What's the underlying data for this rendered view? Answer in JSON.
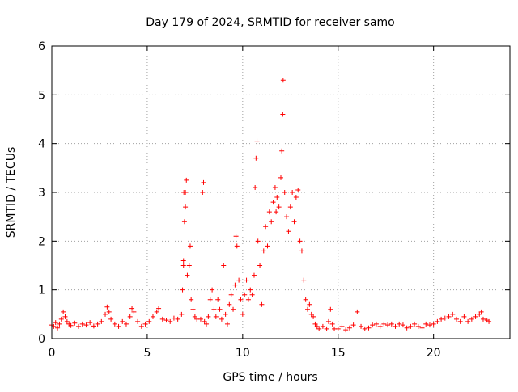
{
  "chart_data": {
    "type": "scatter",
    "title": "Day 179 of 2024, SRMTID for receiver samo",
    "xlabel": "GPS time / hours",
    "ylabel": "SRMTID / TECUs",
    "xlim": [
      0,
      24
    ],
    "ylim": [
      0,
      6
    ],
    "xticks": [
      0,
      5,
      10,
      15,
      20
    ],
    "yticks": [
      0,
      1,
      2,
      3,
      4,
      5,
      6
    ],
    "grid": true,
    "marker": "+",
    "color": "#ff0000",
    "series": [
      {
        "name": "SRMTID",
        "points": [
          [
            0.0,
            0.28
          ],
          [
            0.1,
            0.25
          ],
          [
            0.2,
            0.33
          ],
          [
            0.3,
            0.22
          ],
          [
            0.4,
            0.3
          ],
          [
            0.5,
            0.4
          ],
          [
            0.6,
            0.55
          ],
          [
            0.7,
            0.45
          ],
          [
            0.8,
            0.35
          ],
          [
            0.9,
            0.3
          ],
          [
            1.0,
            0.27
          ],
          [
            1.2,
            0.32
          ],
          [
            1.4,
            0.25
          ],
          [
            1.6,
            0.3
          ],
          [
            1.8,
            0.28
          ],
          [
            2.0,
            0.33
          ],
          [
            2.2,
            0.26
          ],
          [
            2.4,
            0.3
          ],
          [
            2.6,
            0.35
          ],
          [
            2.8,
            0.5
          ],
          [
            2.9,
            0.65
          ],
          [
            3.0,
            0.55
          ],
          [
            3.1,
            0.4
          ],
          [
            3.3,
            0.3
          ],
          [
            3.5,
            0.25
          ],
          [
            3.7,
            0.35
          ],
          [
            3.9,
            0.3
          ],
          [
            4.1,
            0.45
          ],
          [
            4.2,
            0.62
          ],
          [
            4.3,
            0.55
          ],
          [
            4.5,
            0.35
          ],
          [
            4.7,
            0.25
          ],
          [
            4.9,
            0.3
          ],
          [
            5.1,
            0.35
          ],
          [
            5.3,
            0.45
          ],
          [
            5.5,
            0.55
          ],
          [
            5.6,
            0.62
          ],
          [
            5.8,
            0.4
          ],
          [
            6.0,
            0.38
          ],
          [
            6.2,
            0.35
          ],
          [
            6.4,
            0.42
          ],
          [
            6.6,
            0.4
          ],
          [
            6.8,
            0.5
          ],
          [
            6.85,
            1.0
          ],
          [
            6.9,
            1.5
          ],
          [
            6.95,
            2.4
          ],
          [
            7.0,
            3.0
          ],
          [
            7.05,
            3.25
          ],
          [
            7.0,
            2.7
          ],
          [
            6.92,
            3.0
          ],
          [
            6.9,
            1.6
          ],
          [
            7.1,
            1.3
          ],
          [
            7.2,
            1.5
          ],
          [
            7.25,
            1.9
          ],
          [
            7.3,
            0.8
          ],
          [
            7.4,
            0.6
          ],
          [
            7.5,
            0.45
          ],
          [
            7.6,
            0.4
          ],
          [
            7.8,
            0.4
          ],
          [
            7.9,
            3.0
          ],
          [
            7.95,
            3.2
          ],
          [
            8.0,
            0.35
          ],
          [
            8.1,
            0.3
          ],
          [
            8.2,
            0.45
          ],
          [
            8.3,
            0.8
          ],
          [
            8.4,
            1.0
          ],
          [
            8.5,
            0.6
          ],
          [
            8.6,
            0.45
          ],
          [
            8.7,
            0.8
          ],
          [
            8.8,
            0.6
          ],
          [
            8.9,
            0.4
          ],
          [
            9.0,
            1.5
          ],
          [
            9.1,
            0.5
          ],
          [
            9.2,
            0.3
          ],
          [
            9.3,
            0.7
          ],
          [
            9.4,
            0.9
          ],
          [
            9.5,
            0.6
          ],
          [
            9.6,
            1.1
          ],
          [
            9.65,
            2.1
          ],
          [
            9.7,
            1.9
          ],
          [
            9.8,
            1.2
          ],
          [
            9.9,
            0.8
          ],
          [
            10.0,
            0.5
          ],
          [
            10.1,
            0.9
          ],
          [
            10.2,
            1.2
          ],
          [
            10.3,
            0.8
          ],
          [
            10.4,
            1.0
          ],
          [
            10.5,
            0.9
          ],
          [
            10.6,
            1.3
          ],
          [
            10.65,
            3.1
          ],
          [
            10.7,
            3.7
          ],
          [
            10.75,
            4.05
          ],
          [
            10.8,
            2.0
          ],
          [
            10.9,
            1.5
          ],
          [
            11.0,
            0.7
          ],
          [
            11.1,
            1.8
          ],
          [
            11.2,
            2.3
          ],
          [
            11.3,
            1.9
          ],
          [
            11.4,
            2.6
          ],
          [
            11.5,
            2.4
          ],
          [
            11.6,
            2.8
          ],
          [
            11.7,
            3.1
          ],
          [
            11.75,
            2.6
          ],
          [
            11.8,
            2.9
          ],
          [
            11.9,
            2.7
          ],
          [
            12.0,
            3.3
          ],
          [
            12.05,
            3.85
          ],
          [
            12.1,
            4.6
          ],
          [
            12.12,
            5.3
          ],
          [
            12.2,
            3.0
          ],
          [
            12.3,
            2.5
          ],
          [
            12.4,
            2.2
          ],
          [
            12.5,
            2.7
          ],
          [
            12.6,
            3.0
          ],
          [
            12.7,
            2.4
          ],
          [
            12.8,
            2.9
          ],
          [
            12.9,
            3.05
          ],
          [
            13.0,
            2.0
          ],
          [
            13.1,
            1.8
          ],
          [
            13.2,
            1.2
          ],
          [
            13.3,
            0.8
          ],
          [
            13.4,
            0.6
          ],
          [
            13.5,
            0.7
          ],
          [
            13.6,
            0.5
          ],
          [
            13.7,
            0.45
          ],
          [
            13.8,
            0.3
          ],
          [
            13.9,
            0.25
          ],
          [
            14.0,
            0.2
          ],
          [
            14.2,
            0.25
          ],
          [
            14.4,
            0.2
          ],
          [
            14.5,
            0.35
          ],
          [
            14.6,
            0.6
          ],
          [
            14.7,
            0.3
          ],
          [
            14.8,
            0.2
          ],
          [
            15.0,
            0.2
          ],
          [
            15.2,
            0.25
          ],
          [
            15.4,
            0.18
          ],
          [
            15.6,
            0.22
          ],
          [
            15.8,
            0.28
          ],
          [
            16.0,
            0.55
          ],
          [
            16.2,
            0.25
          ],
          [
            16.4,
            0.2
          ],
          [
            16.6,
            0.22
          ],
          [
            16.8,
            0.28
          ],
          [
            17.0,
            0.3
          ],
          [
            17.2,
            0.25
          ],
          [
            17.4,
            0.3
          ],
          [
            17.6,
            0.28
          ],
          [
            17.8,
            0.3
          ],
          [
            18.0,
            0.25
          ],
          [
            18.2,
            0.3
          ],
          [
            18.4,
            0.28
          ],
          [
            18.6,
            0.22
          ],
          [
            18.8,
            0.25
          ],
          [
            19.0,
            0.3
          ],
          [
            19.2,
            0.25
          ],
          [
            19.4,
            0.22
          ],
          [
            19.6,
            0.3
          ],
          [
            19.8,
            0.28
          ],
          [
            20.0,
            0.3
          ],
          [
            20.2,
            0.35
          ],
          [
            20.4,
            0.4
          ],
          [
            20.6,
            0.42
          ],
          [
            20.8,
            0.45
          ],
          [
            21.0,
            0.5
          ],
          [
            21.2,
            0.4
          ],
          [
            21.4,
            0.35
          ],
          [
            21.6,
            0.45
          ],
          [
            21.8,
            0.35
          ],
          [
            22.0,
            0.4
          ],
          [
            22.2,
            0.45
          ],
          [
            22.4,
            0.5
          ],
          [
            22.5,
            0.55
          ],
          [
            22.6,
            0.4
          ],
          [
            22.8,
            0.38
          ],
          [
            22.9,
            0.35
          ]
        ]
      }
    ]
  }
}
